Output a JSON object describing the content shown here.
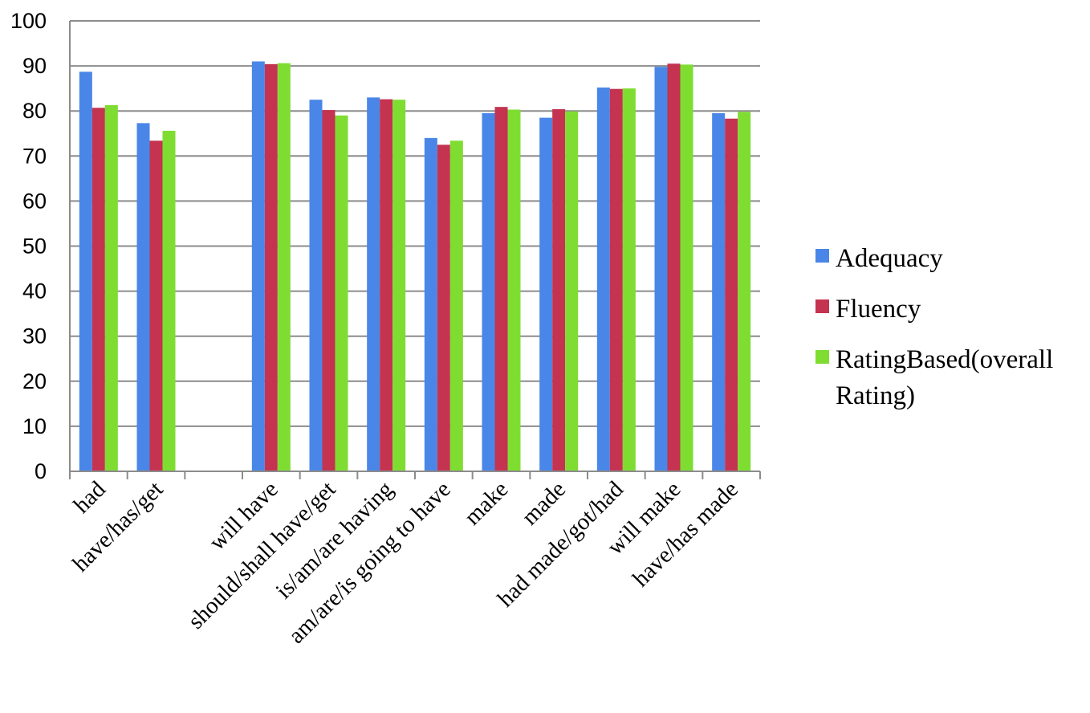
{
  "chart_data": {
    "type": "bar",
    "title": "",
    "xlabel": "",
    "ylabel": "",
    "ylim": [
      0,
      100
    ],
    "yticks": [
      0,
      10,
      20,
      30,
      40,
      50,
      60,
      70,
      80,
      90,
      100
    ],
    "grid": true,
    "legend_position": "right",
    "categories": [
      "had",
      "have/has/get",
      "",
      "will have",
      "should/shall have/get",
      "is/am/are having",
      "am/are/is going to have",
      "make",
      "made",
      "had made/got/had",
      "will make",
      "have/has made"
    ],
    "series": [
      {
        "name": "Adequacy",
        "color": "#4a86e8",
        "values": [
          88.7,
          77.3,
          null,
          91.0,
          82.5,
          83.0,
          74.0,
          79.5,
          78.5,
          85.2,
          89.8,
          79.5
        ]
      },
      {
        "name": "Fluency",
        "color": "#c4334f",
        "values": [
          80.7,
          73.4,
          null,
          90.4,
          80.2,
          82.6,
          72.5,
          80.9,
          80.4,
          84.9,
          90.5,
          78.3
        ]
      },
      {
        "name": "RatingBased(overall Rating)",
        "color": "#7fdd32",
        "values": [
          81.3,
          75.6,
          null,
          90.6,
          79.0,
          82.5,
          73.4,
          80.3,
          79.9,
          85.0,
          90.3,
          79.8
        ]
      }
    ],
    "legend_lines": [
      [
        "Adequacy"
      ],
      [
        "Fluency"
      ],
      [
        "RatingBased(overall",
        "Rating)"
      ]
    ]
  }
}
